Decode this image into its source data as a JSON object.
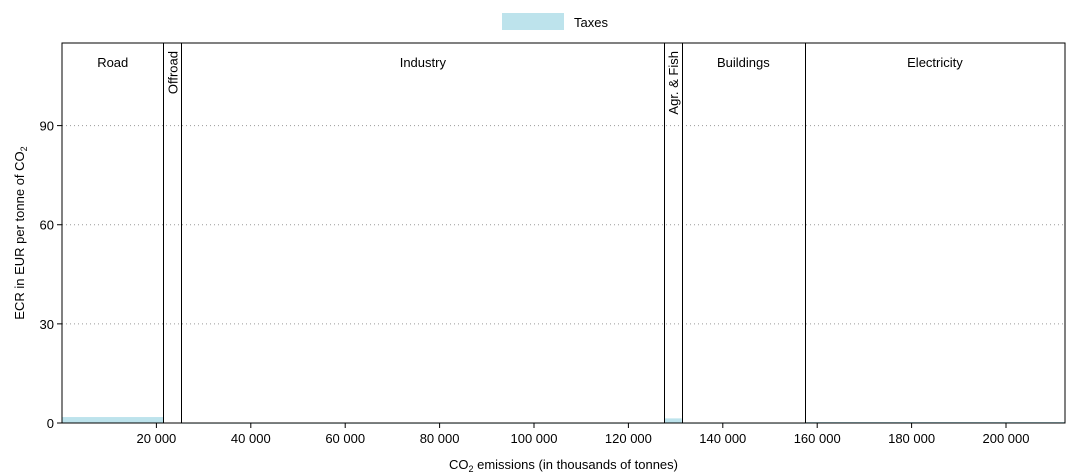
{
  "chart_data": {
    "type": "bar",
    "title": "",
    "legend": {
      "position": "top-center",
      "entries": [
        {
          "label": "Taxes",
          "color": "#bde3ec"
        }
      ]
    },
    "xlabel": {
      "prefix": "CO",
      "sub": "2",
      "suffix": " emissions (in thousands of tonnes)"
    },
    "ylabel": {
      "prefix": "ECR in EUR per tonne of CO",
      "sub": "2"
    },
    "xlim": [
      0,
      212500
    ],
    "ylim": [
      0,
      115
    ],
    "x_ticks": [
      {
        "value": 20000,
        "label": "20 000"
      },
      {
        "value": 40000,
        "label": "40 000"
      },
      {
        "value": 60000,
        "label": "60 000"
      },
      {
        "value": 80000,
        "label": "80 000"
      },
      {
        "value": 100000,
        "label": "100 000"
      },
      {
        "value": 120000,
        "label": "120 000"
      },
      {
        "value": 140000,
        "label": "140 000"
      },
      {
        "value": 160000,
        "label": "160 000"
      },
      {
        "value": 180000,
        "label": "180 000"
      },
      {
        "value": 200000,
        "label": "200 000"
      }
    ],
    "y_ticks": [
      {
        "value": 0,
        "label": "0"
      },
      {
        "value": 30,
        "label": "30"
      },
      {
        "value": 60,
        "label": "60"
      },
      {
        "value": 90,
        "label": "90"
      }
    ],
    "grid": "horizontal-dotted",
    "sectors": [
      {
        "name": "Road",
        "start": 0,
        "end": 21500,
        "vertical": false
      },
      {
        "name": "Offroad",
        "start": 21500,
        "end": 25300,
        "vertical": true
      },
      {
        "name": "Industry",
        "start": 25300,
        "end": 127600,
        "vertical": false
      },
      {
        "name": "Agr. & Fish",
        "start": 127600,
        "end": 131300,
        "vertical": true
      },
      {
        "name": "Buildings",
        "start": 131300,
        "end": 157400,
        "vertical": false
      },
      {
        "name": "Electricity",
        "start": 157400,
        "end": 212500,
        "vertical": false
      }
    ],
    "series": [
      {
        "name": "Taxes",
        "color": "#bde3ec",
        "segments": [
          {
            "start": 0,
            "end": 21500,
            "value": 1.8
          },
          {
            "start": 21500,
            "end": 25300,
            "value": 0
          },
          {
            "start": 25300,
            "end": 127600,
            "value": 0.1
          },
          {
            "start": 127600,
            "end": 131300,
            "value": 1.4
          },
          {
            "start": 131300,
            "end": 157400,
            "value": 0.1
          },
          {
            "start": 157400,
            "end": 212500,
            "value": 0.3
          }
        ]
      }
    ]
  }
}
